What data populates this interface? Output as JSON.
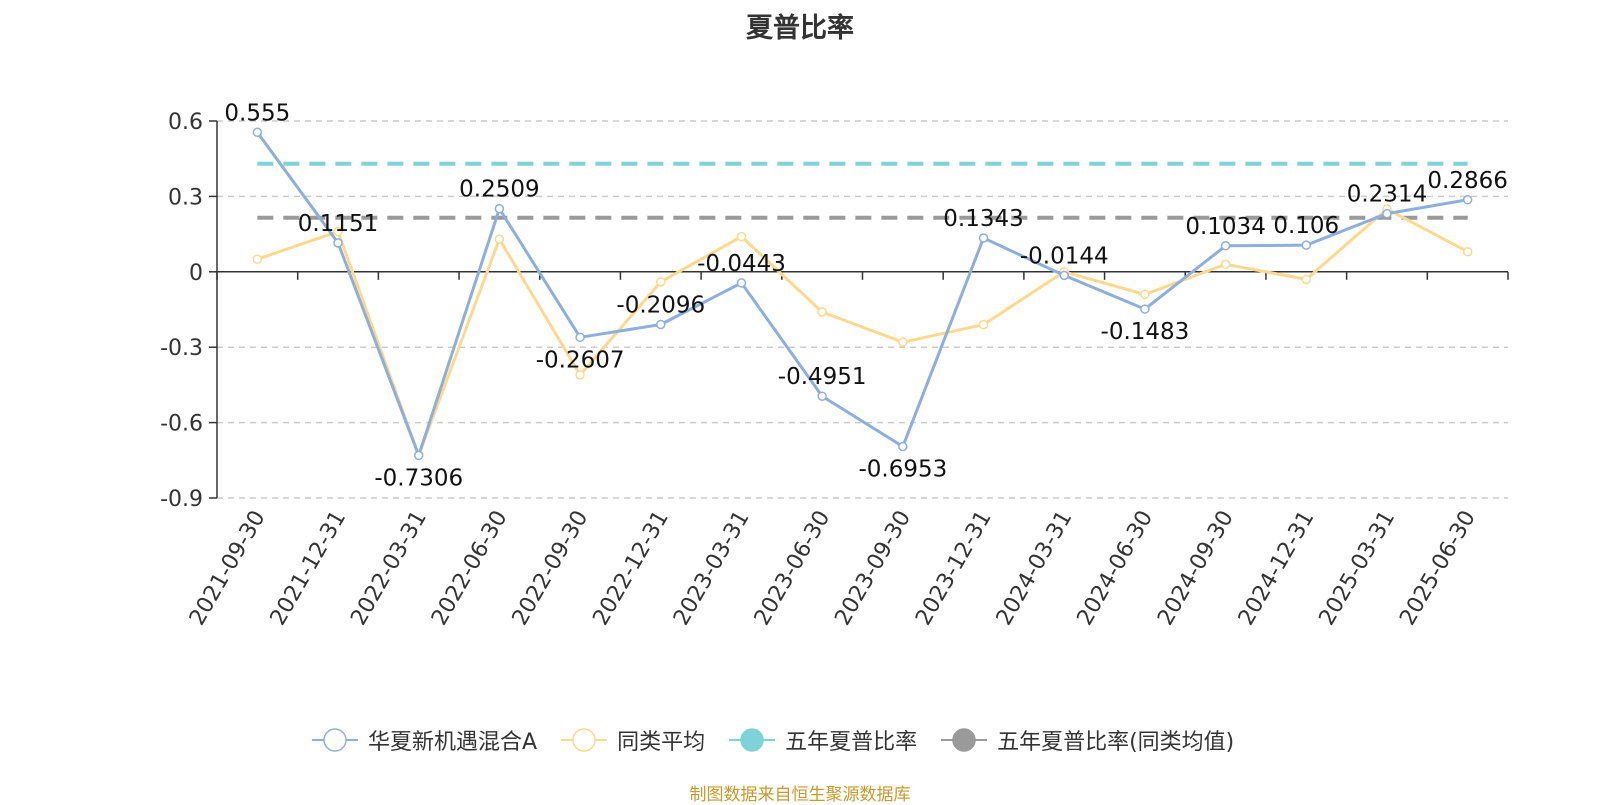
{
  "chart_data": {
    "type": "line",
    "title": "夏普比率",
    "categories": [
      "2021-09-30",
      "2021-12-31",
      "2022-03-31",
      "2022-06-30",
      "2022-09-30",
      "2022-12-31",
      "2023-03-31",
      "2023-06-30",
      "2023-09-30",
      "2023-12-31",
      "2024-03-31",
      "2024-06-30",
      "2024-09-30",
      "2024-12-31",
      "2025-03-31",
      "2025-06-30"
    ],
    "ylim": [
      -0.9,
      0.6
    ],
    "yticks": [
      0.6,
      0.3,
      0,
      -0.3,
      -0.6,
      -0.9
    ],
    "ytick_labels": [
      "0.6",
      "0.3",
      "0",
      "-0.3",
      "-0.6",
      "-0.9"
    ],
    "grid": true,
    "legend_position": "bottom",
    "series": [
      {
        "name": "华夏新机遇混合A",
        "color": "#8eaedb",
        "values": [
          0.555,
          0.1151,
          -0.7306,
          0.2509,
          -0.2607,
          -0.2096,
          -0.0443,
          -0.4951,
          -0.6953,
          0.1343,
          -0.0144,
          -0.1483,
          0.1034,
          0.106,
          0.2314,
          0.2866
        ],
        "labels": [
          "0.555",
          "0.1151",
          "-0.7306",
          "0.2509",
          "-0.2607",
          "-0.2096",
          "-0.0443",
          "-0.4951",
          "-0.6953",
          "0.1343",
          "-0.0144",
          "-0.1483",
          "0.1034",
          "0.106",
          "0.2314",
          "0.2866"
        ]
      },
      {
        "name": "同类平均",
        "color": "#fdd98f",
        "values": [
          0.05,
          0.16,
          -0.73,
          0.13,
          -0.41,
          -0.04,
          0.14,
          -0.16,
          -0.28,
          -0.21,
          0.0,
          -0.09,
          0.03,
          -0.03,
          0.25,
          0.08
        ]
      }
    ],
    "reference_lines": [
      {
        "name": "五年夏普比率",
        "color": "#7fd3d8",
        "value": 0.43
      },
      {
        "name": "五年夏普比率(同类均值)",
        "color": "#9a9a9a",
        "value": 0.215
      }
    ]
  },
  "source_note": "制图数据来自恒生聚源数据库"
}
